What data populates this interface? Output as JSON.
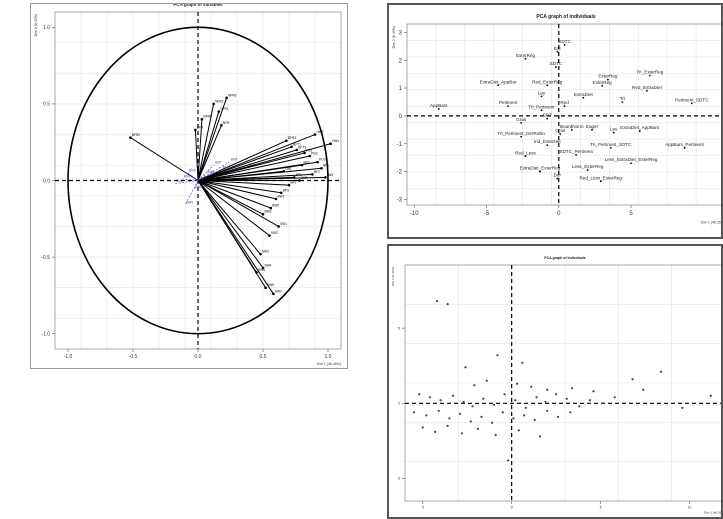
{
  "chart_data": [
    {
      "type": "scatter",
      "subtype": "pca-variable-correlation-circle",
      "title": "PCA graph of variables",
      "xlabel": "Dim 1 (46.26%)",
      "ylabel": "Dim 2 (8.43%)",
      "xlim": [
        -1.1,
        1.1
      ],
      "ylim": [
        -1.1,
        1.1
      ],
      "xticks": [
        "-1.0",
        "-0.5",
        "0.0",
        "0.5",
        "1.0"
      ],
      "yticks": [
        "-1.0",
        "-0.5",
        "0.0",
        "0.5",
        "1.0"
      ],
      "grid": true,
      "series": [
        {
          "name": "active",
          "color": "#000000",
          "points": [
            {
              "label": "BFR2",
              "x": -0.52,
              "y": 0.28
            },
            {
              "label": "BFR",
              "x": -0.02,
              "y": 0.33
            },
            {
              "label": "NFR5",
              "x": 0.03,
              "y": 0.4
            },
            {
              "label": "NFR2",
              "x": 0.12,
              "y": 0.5
            },
            {
              "label": "NFR1",
              "x": 0.16,
              "y": 0.45
            },
            {
              "label": "NFR6",
              "x": 0.22,
              "y": 0.54
            },
            {
              "label": "NFR",
              "x": 0.18,
              "y": 0.36
            },
            {
              "label": "BFR3",
              "x": 0.68,
              "y": 0.26
            },
            {
              "label": "BFT1",
              "x": 0.72,
              "y": 0.22
            },
            {
              "label": "BFT3",
              "x": 0.76,
              "y": 0.2
            },
            {
              "label": "PG1",
              "x": 0.82,
              "y": 0.18
            },
            {
              "label": "PG2",
              "x": 0.86,
              "y": 0.16
            },
            {
              "label": "PG3",
              "x": 0.92,
              "y": 0.12
            },
            {
              "label": "BF1",
              "x": 0.95,
              "y": 0.08
            },
            {
              "label": "BF2",
              "x": 0.88,
              "y": 0.04
            },
            {
              "label": "BF3",
              "x": 0.8,
              "y": 0.1
            },
            {
              "label": "BP1",
              "x": 0.74,
              "y": 0.02
            },
            {
              "label": "BP2",
              "x": 0.7,
              "y": -0.03
            },
            {
              "label": "BP3",
              "x": 0.64,
              "y": -0.08
            },
            {
              "label": "BW1",
              "x": 0.6,
              "y": -0.12
            },
            {
              "label": "BW2",
              "x": 0.56,
              "y": -0.18
            },
            {
              "label": "BW3",
              "x": 0.5,
              "y": -0.22
            },
            {
              "label": "SW1",
              "x": 0.62,
              "y": -0.3
            },
            {
              "label": "SW2",
              "x": 0.55,
              "y": -0.36
            },
            {
              "label": "SW3",
              "x": 0.48,
              "y": -0.48
            },
            {
              "label": "SW4",
              "x": 0.5,
              "y": -0.57
            },
            {
              "label": "SW5",
              "x": 0.45,
              "y": -0.6
            },
            {
              "label": "SW6",
              "x": 0.52,
              "y": -0.7
            },
            {
              "label": "SW7",
              "x": 0.58,
              "y": -0.74
            },
            {
              "label": "LW1",
              "x": 0.66,
              "y": 0.06
            },
            {
              "label": "LW2",
              "x": 0.78,
              "y": 0.0
            },
            {
              "label": "LW3",
              "x": 0.98,
              "y": 0.02
            },
            {
              "label": "HW1",
              "x": 1.02,
              "y": 0.24
            },
            {
              "label": "HW2",
              "x": 0.9,
              "y": 0.3
            }
          ]
        },
        {
          "name": "supplementary",
          "color": "#3f3fbf",
          "points": [
            {
              "label": "BM1",
              "x": -0.18,
              "y": -0.02
            },
            {
              "label": "BM2",
              "x": -0.12,
              "y": 0.01
            },
            {
              "label": "BM3",
              "x": -0.08,
              "y": 0.05
            },
            {
              "label": "BM4",
              "x": -0.03,
              "y": -0.06
            },
            {
              "label": "BM5",
              "x": -0.1,
              "y": -0.16
            },
            {
              "label": "BM6",
              "x": 0.06,
              "y": 0.04
            },
            {
              "label": "BM7",
              "x": 0.12,
              "y": 0.1
            },
            {
              "label": "BM8",
              "x": 0.18,
              "y": 0.07
            },
            {
              "label": "BM9",
              "x": 0.24,
              "y": 0.12
            }
          ]
        }
      ]
    },
    {
      "type": "scatter",
      "subtype": "pca-individuals",
      "title": "PCA graph of individuals",
      "xlabel": "Dim 1 (46.26%)",
      "ylabel": "Dim 2 (8.43%)",
      "xlim": [
        -10.5,
        11.5
      ],
      "ylim": [
        -3.2,
        3.3
      ],
      "xticks": [
        "-10",
        "-5",
        "0",
        "5"
      ],
      "yticks": [
        "-3",
        "-2",
        "-1",
        "0",
        "1",
        "2",
        "3"
      ],
      "grid": true,
      "points": [
        {
          "label": "SDTC",
          "x": 0.4,
          "y": 2.55
        },
        {
          "label": "Ext",
          "x": -0.1,
          "y": 2.3
        },
        {
          "label": "ExterReg",
          "x": -2.3,
          "y": 2.05
        },
        {
          "label": "SDTC",
          "x": -0.2,
          "y": 1.75
        },
        {
          "label": "ExterReg",
          "x": 3.4,
          "y": 1.3
        },
        {
          "label": "Tri_ExterReg",
          "x": 6.3,
          "y": 1.45
        },
        {
          "label": "ExtraDiet_AppBar",
          "x": -4.2,
          "y": 1.1
        },
        {
          "label": "Red_ExterReg",
          "x": -0.8,
          "y": 1.1
        },
        {
          "label": "ExterReg",
          "x": 3.0,
          "y": 1.08
        },
        {
          "label": "Red_ExtraDiet",
          "x": 6.1,
          "y": 0.9
        },
        {
          "label": "ExtraDiet",
          "x": 1.7,
          "y": 0.65
        },
        {
          "label": "Lay",
          "x": -1.2,
          "y": 0.7
        },
        {
          "label": "Tri",
          "x": 4.4,
          "y": 0.5
        },
        {
          "label": "Pertinent_SDTC",
          "x": 9.2,
          "y": 0.45
        },
        {
          "label": "AppBars",
          "x": -8.3,
          "y": 0.25
        },
        {
          "label": "Pertinent",
          "x": -3.5,
          "y": 0.35
        },
        {
          "label": "Tri_Pertinent",
          "x": -1.2,
          "y": 0.2
        },
        {
          "label": "Red",
          "x": 0.4,
          "y": 0.35
        },
        {
          "label": "SDT",
          "x": -0.8,
          "y": -0.1
        },
        {
          "label": "Gras",
          "x": -2.6,
          "y": -0.25
        },
        {
          "label": "Tri_Pertinent_DerRollin",
          "x": -2.6,
          "y": -0.75
        },
        {
          "label": "Gras",
          "x": 0.1,
          "y": -0.65
        },
        {
          "label": "BoardNorm",
          "x": 0.9,
          "y": -0.5
        },
        {
          "label": "Eager",
          "x": 2.3,
          "y": -0.5
        },
        {
          "label": "Lav",
          "x": 3.8,
          "y": -0.6
        },
        {
          "label": "ExtraDiet_AppBars",
          "x": 5.6,
          "y": -0.55
        },
        {
          "label": "Ind_ExterNet",
          "x": -0.8,
          "y": -1.05
        },
        {
          "label": "Tri_Pertinent_SDTC",
          "x": 3.6,
          "y": -1.15
        },
        {
          "label": "AppBars_Pertinent",
          "x": 8.7,
          "y": -1.15
        },
        {
          "label": "Red_Less",
          "x": -2.3,
          "y": -1.45
        },
        {
          "label": "SDTC_Pertinent",
          "x": 1.2,
          "y": -1.4
        },
        {
          "label": "Less_ExtraDiet_ExterReg",
          "x": 5.0,
          "y": -1.7
        },
        {
          "label": "ExtraDiet_ExterReg",
          "x": -1.3,
          "y": -2.0
        },
        {
          "label": "Less_ExterReg",
          "x": 2.0,
          "y": -1.95
        },
        {
          "label": "Der",
          "x": -0.1,
          "y": -2.25
        },
        {
          "label": "Red_Less_ExterReg",
          "x": 2.9,
          "y": -2.35
        }
      ]
    },
    {
      "type": "scatter",
      "subtype": "pca-individuals",
      "title": "PCA graph of individuals",
      "xlabel": "Dim 1 (46.26%)",
      "ylabel": "Dim 2 (8.43%)",
      "xlim": [
        -6,
        12
      ],
      "ylim": [
        -6.5,
        9.2
      ],
      "xticks": [
        "-5",
        "0",
        "5",
        "10"
      ],
      "yticks": [
        "-5",
        "0",
        "5"
      ],
      "grid": true,
      "points": [
        {
          "x": -4.2,
          "y": 6.8
        },
        {
          "x": -3.6,
          "y": 6.6
        },
        {
          "x": 6.8,
          "y": 1.6
        },
        {
          "x": 8.4,
          "y": 2.1
        },
        {
          "x": 11.2,
          "y": 0.5
        },
        {
          "x": -2.1,
          "y": 1.2
        },
        {
          "x": -1.4,
          "y": 1.5
        },
        {
          "x": 0.3,
          "y": 1.3
        },
        {
          "x": 1.1,
          "y": 1.1
        },
        {
          "x": 2.0,
          "y": 0.9
        },
        {
          "x": 3.4,
          "y": 1.0
        },
        {
          "x": 4.6,
          "y": 0.8
        },
        {
          "x": -5.2,
          "y": 0.6
        },
        {
          "x": -4.6,
          "y": 0.4
        },
        {
          "x": -4.0,
          "y": 0.2
        },
        {
          "x": -3.3,
          "y": 0.5
        },
        {
          "x": -2.7,
          "y": 0.1
        },
        {
          "x": -2.2,
          "y": -0.2
        },
        {
          "x": -1.6,
          "y": 0.3
        },
        {
          "x": -1.0,
          "y": -0.1
        },
        {
          "x": -0.4,
          "y": 0.6
        },
        {
          "x": 0.2,
          "y": 0.2
        },
        {
          "x": 0.8,
          "y": -0.3
        },
        {
          "x": 1.4,
          "y": 0.4
        },
        {
          "x": 1.9,
          "y": 0.1
        },
        {
          "x": 2.5,
          "y": 0.6
        },
        {
          "x": 3.1,
          "y": 0.3
        },
        {
          "x": 3.8,
          "y": -0.2
        },
        {
          "x": 4.4,
          "y": 0.2
        },
        {
          "x": 5.1,
          "y": 0.0
        },
        {
          "x": 5.8,
          "y": 0.4
        },
        {
          "x": -5.5,
          "y": -0.6
        },
        {
          "x": -4.8,
          "y": -0.8
        },
        {
          "x": -4.1,
          "y": -0.5
        },
        {
          "x": -3.5,
          "y": -1.0
        },
        {
          "x": -2.9,
          "y": -0.7
        },
        {
          "x": -2.3,
          "y": -1.2
        },
        {
          "x": -1.7,
          "y": -0.9
        },
        {
          "x": -1.1,
          "y": -1.3
        },
        {
          "x": -0.5,
          "y": -0.6
        },
        {
          "x": 0.1,
          "y": -1.0
        },
        {
          "x": 0.7,
          "y": -0.8
        },
        {
          "x": 1.3,
          "y": -1.1
        },
        {
          "x": 2.0,
          "y": -0.5
        },
        {
          "x": 2.6,
          "y": -0.9
        },
        {
          "x": 3.3,
          "y": -0.6
        },
        {
          "x": -5.0,
          "y": -1.6
        },
        {
          "x": -4.3,
          "y": -1.9
        },
        {
          "x": -3.6,
          "y": -1.5
        },
        {
          "x": -2.8,
          "y": -2.0
        },
        {
          "x": -1.9,
          "y": -1.7
        },
        {
          "x": -0.9,
          "y": -2.1
        },
        {
          "x": 0.4,
          "y": -1.8
        },
        {
          "x": 1.6,
          "y": -2.2
        },
        {
          "x": -0.2,
          "y": -3.8
        },
        {
          "x": -0.8,
          "y": 3.2
        },
        {
          "x": 0.6,
          "y": 2.7
        },
        {
          "x": -2.6,
          "y": 2.4
        },
        {
          "x": 9.6,
          "y": -0.3
        },
        {
          "x": 7.4,
          "y": 0.9
        }
      ]
    }
  ]
}
